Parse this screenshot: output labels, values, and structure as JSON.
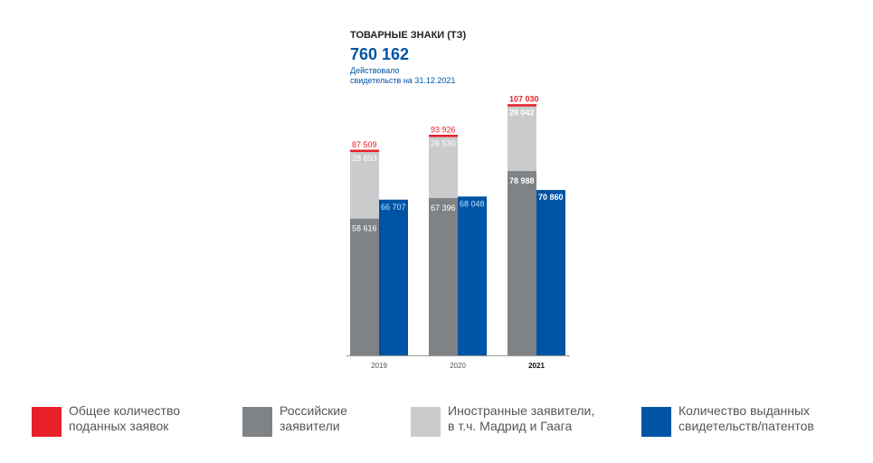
{
  "header": {
    "title": "ТОВАРНЫЕ ЗНАКИ (ТЗ)",
    "big_number": "760 162",
    "subtitle_line1": "Действовало",
    "subtitle_line2": "свидетельств на 31.12.2021"
  },
  "colors": {
    "total": "#e8202a",
    "russian": "#7f8385",
    "foreign": "#c9cbcd",
    "issued": "#0054a6"
  },
  "chart_data": {
    "type": "bar",
    "categories": [
      "2019",
      "2020",
      "2021"
    ],
    "highlight_category": "2021",
    "ylim": [
      0,
      110000
    ],
    "series": [
      {
        "name": "Общее количество поданных заявок",
        "key": "total",
        "values": [
          87509,
          93926,
          107030
        ],
        "labels": [
          "87 509",
          "93 926",
          "107 030"
        ]
      },
      {
        "name": "Российские заявители",
        "key": "russian",
        "values": [
          58616,
          67396,
          78988
        ],
        "labels": [
          "58 616",
          "67 396",
          "78 988"
        ]
      },
      {
        "name": "Иностранные заявители, в т.ч. Мадрид и Гаага",
        "key": "foreign",
        "values": [
          28893,
          26530,
          28042
        ],
        "labels": [
          "28 893",
          "26 530",
          "28 042"
        ]
      },
      {
        "name": "Количество выданных свидетельств/патентов",
        "key": "issued",
        "values": [
          66707,
          68048,
          70860
        ],
        "labels": [
          "66 707",
          "68 048",
          "70 860"
        ]
      }
    ]
  },
  "legend": [
    {
      "key": "total",
      "line1": "Общее количество",
      "line2": "поданных заявок"
    },
    {
      "key": "russian",
      "line1": "Российские",
      "line2": "заявители"
    },
    {
      "key": "foreign",
      "line1": "Иностранные заявители,",
      "line2": "в т.ч. Мадрид и Гаага"
    },
    {
      "key": "issued",
      "line1": "Количество выданных",
      "line2": "свидетельств/патентов"
    }
  ]
}
